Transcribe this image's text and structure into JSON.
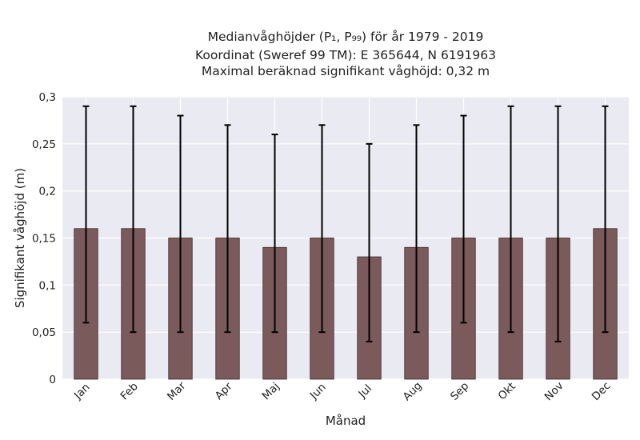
{
  "chart_data": {
    "type": "bar",
    "title_lines": [
      "Medianvåghöjder (P₁, P₉₉) för år 1979 - 2019",
      "Koordinat (Sweref 99 TM): E 365644, N 6191963",
      "Maximal beräknad signifikant våghöjd: 0,32 m"
    ],
    "xlabel": "Månad",
    "ylabel": "Signifikant våghöjd (m)",
    "categories": [
      "Jan",
      "Feb",
      "Mar",
      "Apr",
      "Maj",
      "Jun",
      "Jul",
      "Aug",
      "Sep",
      "Okt",
      "Nov",
      "Dec"
    ],
    "values": [
      0.16,
      0.16,
      0.15,
      0.15,
      0.14,
      0.15,
      0.13,
      0.14,
      0.15,
      0.15,
      0.15,
      0.16
    ],
    "p1": [
      0.06,
      0.05,
      0.05,
      0.05,
      0.05,
      0.05,
      0.04,
      0.05,
      0.06,
      0.05,
      0.04,
      0.05
    ],
    "p99": [
      0.29,
      0.29,
      0.28,
      0.27,
      0.26,
      0.27,
      0.25,
      0.27,
      0.28,
      0.29,
      0.29,
      0.29
    ],
    "ylim": [
      0,
      0.3
    ],
    "yticks": [
      0,
      0.05,
      0.1,
      0.15,
      0.2,
      0.25,
      0.3
    ],
    "ytick_labels": [
      "0",
      "0,05",
      "0,1",
      "0,15",
      "0,2",
      "0,25",
      "0,3"
    ],
    "grid": true,
    "colors": {
      "bar": "#7b5a5b",
      "bar_edge": "#3e2a2b",
      "plot_bg": "#eaeaf2",
      "grid": "#ffffff",
      "errorbar": "#000000"
    }
  }
}
